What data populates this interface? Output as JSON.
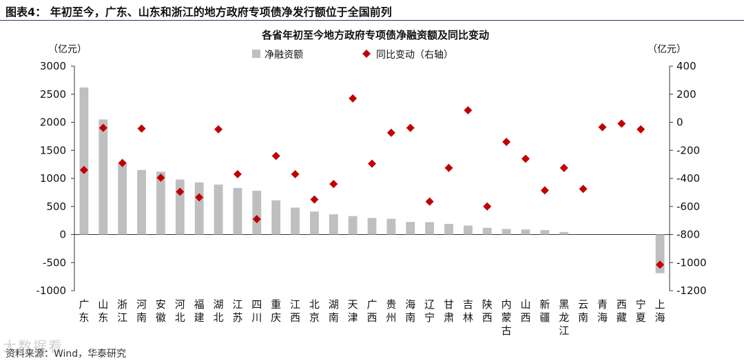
{
  "figure_title": "图表4：  年初至今，广东、山东和浙江的地方政府专项债净发行额位于全国前列",
  "source_note": "资料来源：Wind，华泰研究",
  "watermark": "大数据看",
  "colors": {
    "bar": "#bfbfbf",
    "marker": "#c00000",
    "header_rule": "#1f3a70"
  },
  "chart_data": {
    "type": "bar",
    "title": "各省年初至今地方政府专项债净融资额及同比变动",
    "ylabel_left": "（亿元）",
    "ylabel_right": "（亿元）",
    "legend_position": "top-center",
    "grid": false,
    "categories": [
      "广东",
      "山东",
      "浙江",
      "河南",
      "安徽",
      "河北",
      "福建",
      "湖北",
      "江苏",
      "四川",
      "重庆",
      "江西",
      "北京",
      "湖南",
      "天津",
      "广西",
      "贵州",
      "海南",
      "辽宁",
      "甘肃",
      "吉林",
      "陕西",
      "内蒙古",
      "山西",
      "新疆",
      "黑龙江",
      "云南",
      "青海",
      "西藏",
      "宁夏",
      "上海"
    ],
    "ylim_left": [
      -1000,
      3000
    ],
    "ylim_right": [
      -1200,
      400
    ],
    "yticks_left": [
      -1000,
      -500,
      0,
      500,
      1000,
      1500,
      2000,
      2500,
      3000
    ],
    "yticks_right": [
      -1200,
      -1000,
      -800,
      -600,
      -400,
      -200,
      0,
      200,
      400
    ],
    "series": [
      {
        "name": "净融资额",
        "type": "bar",
        "axis": "left",
        "values": [
          2620,
          2050,
          1280,
          1150,
          1120,
          980,
          930,
          890,
          830,
          780,
          610,
          480,
          410,
          360,
          330,
          295,
          280,
          225,
          220,
          190,
          160,
          120,
          100,
          90,
          80,
          45,
          0,
          0,
          0,
          0,
          -690
        ]
      },
      {
        "name": "同比变动（右轴）",
        "type": "scatter",
        "axis": "right",
        "values": [
          -340,
          -40,
          -290,
          -45,
          -395,
          -495,
          -535,
          -50,
          -370,
          -690,
          -240,
          -370,
          -550,
          -440,
          170,
          -295,
          -75,
          -40,
          -565,
          -325,
          85,
          -600,
          -140,
          -260,
          -485,
          -325,
          -475,
          -35,
          -10,
          -50,
          -1015
        ]
      }
    ]
  }
}
